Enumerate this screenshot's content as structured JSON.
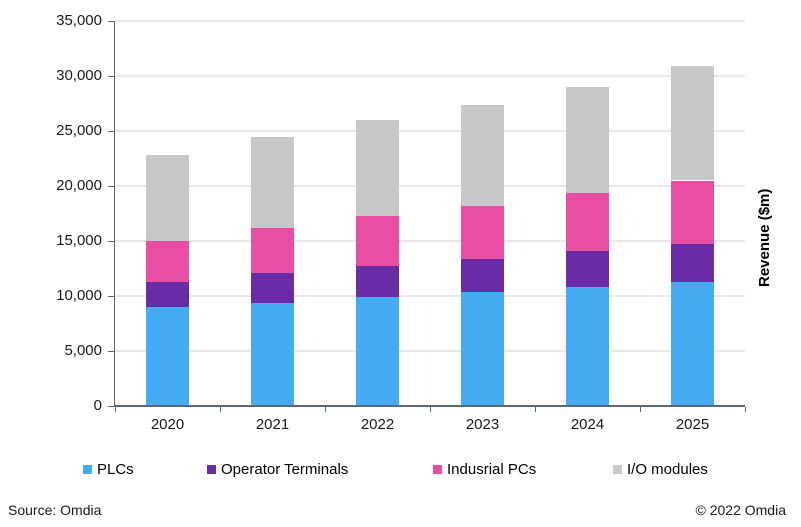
{
  "chart_data": {
    "type": "bar",
    "stacked": true,
    "title": "",
    "xlabel": "",
    "ylabel": "Revenue ($m)",
    "categories": [
      "2020",
      "2021",
      "2022",
      "2023",
      "2024",
      "2025"
    ],
    "series": [
      {
        "name": "PLCs",
        "color": "#45abf2",
        "values": [
          9000,
          9400,
          9900,
          10400,
          10800,
          11300
        ]
      },
      {
        "name": "Operator Terminals",
        "color": "#6a2ca6",
        "values": [
          2300,
          2700,
          2800,
          3000,
          3300,
          3400
        ]
      },
      {
        "name": "Indusrial PCs",
        "color": "#e84fa4",
        "values": [
          3700,
          4100,
          4600,
          4800,
          5300,
          5800
        ]
      },
      {
        "name": "I/O modules",
        "color": "#c8c8c8",
        "values": [
          7800,
          8300,
          8700,
          9200,
          9600,
          10400
        ]
      }
    ],
    "stacked_totals": [
      22800,
      24500,
      26000,
      27400,
      29000,
      30900
    ],
    "ylim": [
      0,
      35000
    ],
    "ytick_step": 5000,
    "ytick_labels": [
      "0",
      "5,000",
      "10,000",
      "15,000",
      "20,000",
      "25,000",
      "30,000",
      "35,000"
    ],
    "grid": true,
    "legend_position": "bottom",
    "axis_color": "#5b6676",
    "gridline_color": "#e8e8e8"
  },
  "footer": {
    "source": "Source: Omdia",
    "copyright": "© 2022 Omdia"
  }
}
